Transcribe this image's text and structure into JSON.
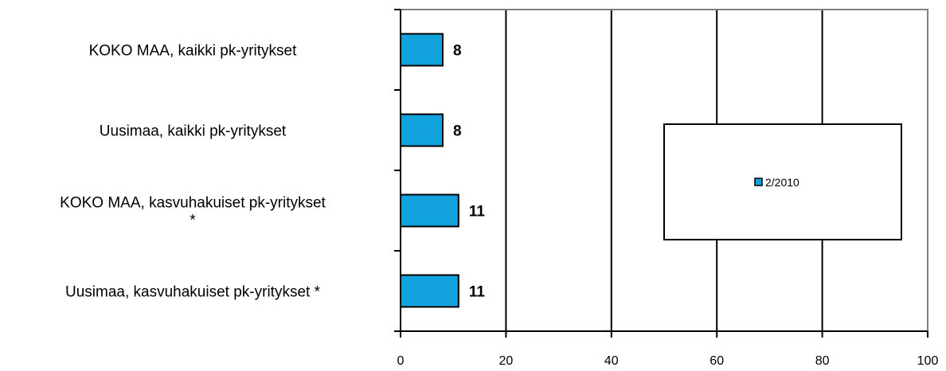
{
  "chart_data": {
    "type": "bar",
    "orientation": "horizontal",
    "categories": [
      [
        "KOKO MAA, kaikki pk-yritykset"
      ],
      [
        "Uusimaa, kaikki pk-yritykset"
      ],
      [
        "KOKO MAA, kasvuhakuiset pk-yritykset",
        "*"
      ],
      [
        "Uusimaa, kasvuhakuiset pk-yritykset *"
      ]
    ],
    "series": [
      {
        "name": "2/2010",
        "values": [
          8,
          8,
          11,
          11
        ],
        "color": "#12a3de"
      }
    ],
    "xlim": [
      0,
      100
    ],
    "xticks": [
      0,
      20,
      40,
      60,
      80,
      100
    ],
    "grid": "vertical",
    "legend": "right",
    "title": "",
    "xlabel": "",
    "ylabel": ""
  }
}
